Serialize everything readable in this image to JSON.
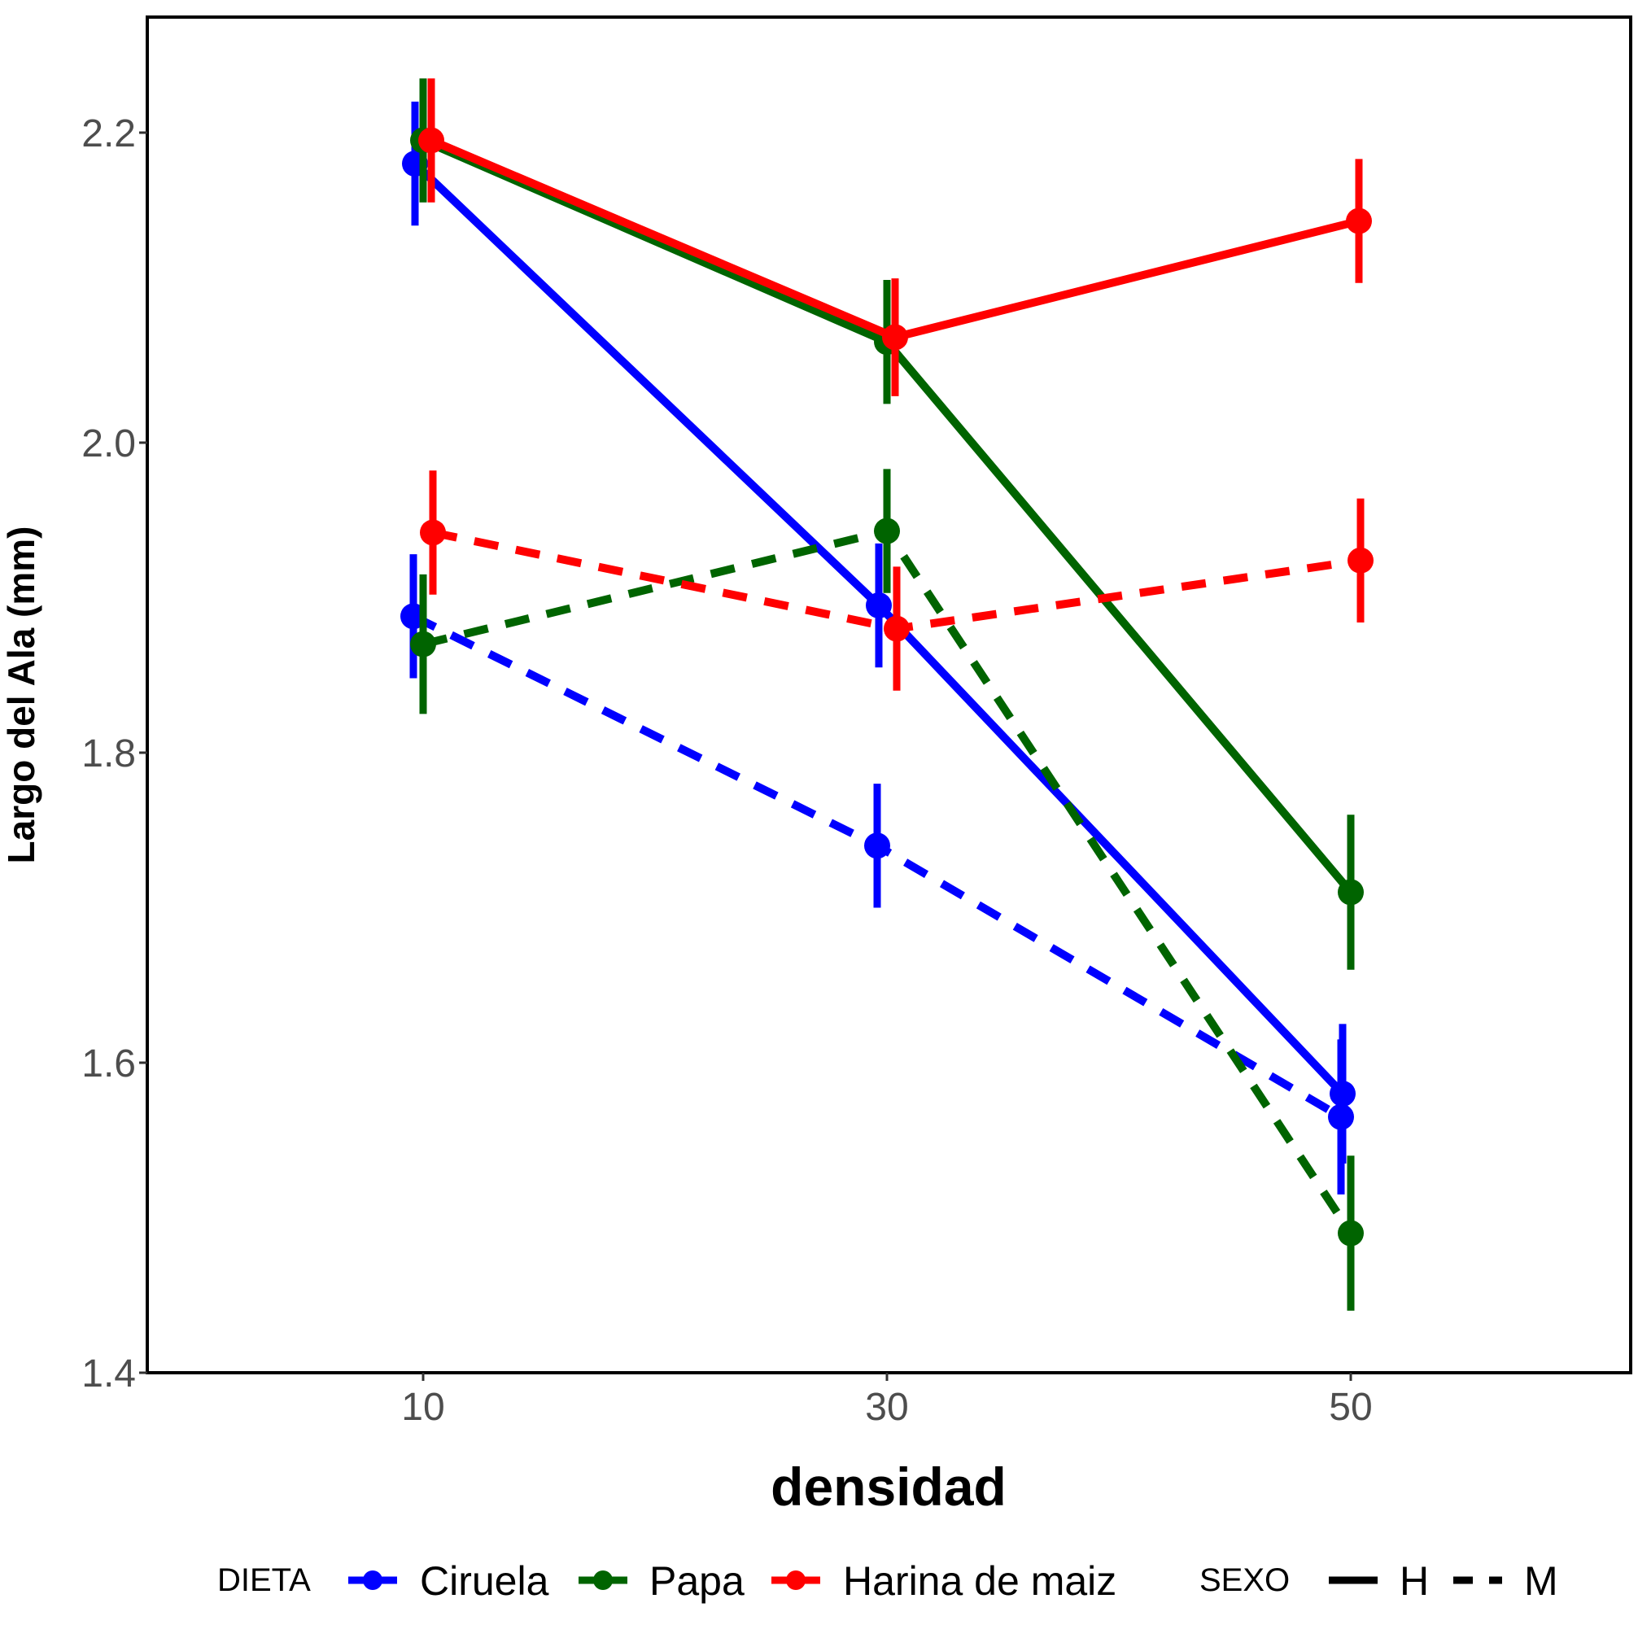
{
  "chart_data": {
    "type": "line",
    "xlabel": "densidad",
    "ylabel": "Largo del Ala (mm)",
    "x": [
      10,
      30,
      50
    ],
    "x_ticks": [
      "10",
      "30",
      "50"
    ],
    "ylim": [
      1.4,
      2.27
    ],
    "y_ticks": [
      "1.4",
      "1.6",
      "1.8",
      "2.0",
      "2.2"
    ],
    "grid": false,
    "legend_position": "bottom",
    "series": [
      {
        "name": "Ciruela",
        "dieta": "Ciruela",
        "sexo": "H",
        "color": "#0000ff",
        "values": [
          2.18,
          1.895,
          1.58
        ],
        "ci": [
          [
            2.14,
            2.22
          ],
          [
            1.855,
            1.935
          ],
          [
            1.535,
            1.625
          ]
        ]
      },
      {
        "name": "Papa",
        "dieta": "Papa",
        "sexo": "H",
        "color": "#006400",
        "values": [
          2.195,
          2.065,
          1.71
        ],
        "ci": [
          [
            2.155,
            2.235
          ],
          [
            2.025,
            2.105
          ],
          [
            1.66,
            1.76
          ]
        ]
      },
      {
        "name": "Harina de maiz",
        "dieta": "Harina de maiz",
        "sexo": "H",
        "color": "#ff0000",
        "values": [
          2.195,
          2.068,
          2.143
        ],
        "ci": [
          [
            2.155,
            2.235
          ],
          [
            2.03,
            2.106
          ],
          [
            2.103,
            2.183
          ]
        ]
      },
      {
        "name": "Ciruela",
        "dieta": "Ciruela",
        "sexo": "M",
        "color": "#0000ff",
        "values": [
          1.888,
          1.74,
          1.565
        ],
        "ci": [
          [
            1.848,
            1.928
          ],
          [
            1.7,
            1.78
          ],
          [
            1.515,
            1.615
          ]
        ]
      },
      {
        "name": "Papa",
        "dieta": "Papa",
        "sexo": "M",
        "color": "#006400",
        "values": [
          1.87,
          1.943,
          1.49
        ],
        "ci": [
          [
            1.825,
            1.915
          ],
          [
            1.903,
            1.983
          ],
          [
            1.44,
            1.54
          ]
        ]
      },
      {
        "name": "Harina de maiz",
        "dieta": "Harina de maiz",
        "sexo": "M",
        "color": "#ff0000",
        "values": [
          1.942,
          1.88,
          1.924
        ],
        "ci": [
          [
            1.902,
            1.982
          ],
          [
            1.84,
            1.92
          ],
          [
            1.884,
            1.964
          ]
        ]
      }
    ],
    "legend": {
      "dieta_title": "DIETA",
      "dieta_items": [
        {
          "label": "Ciruela",
          "color": "#0000ff"
        },
        {
          "label": "Papa",
          "color": "#006400"
        },
        {
          "label": "Harina de maiz",
          "color": "#ff0000"
        }
      ],
      "sexo_title": "SEXO",
      "sexo_items": [
        {
          "label": "H",
          "linetype": "solid"
        },
        {
          "label": "M",
          "linetype": "dashed"
        }
      ]
    }
  }
}
